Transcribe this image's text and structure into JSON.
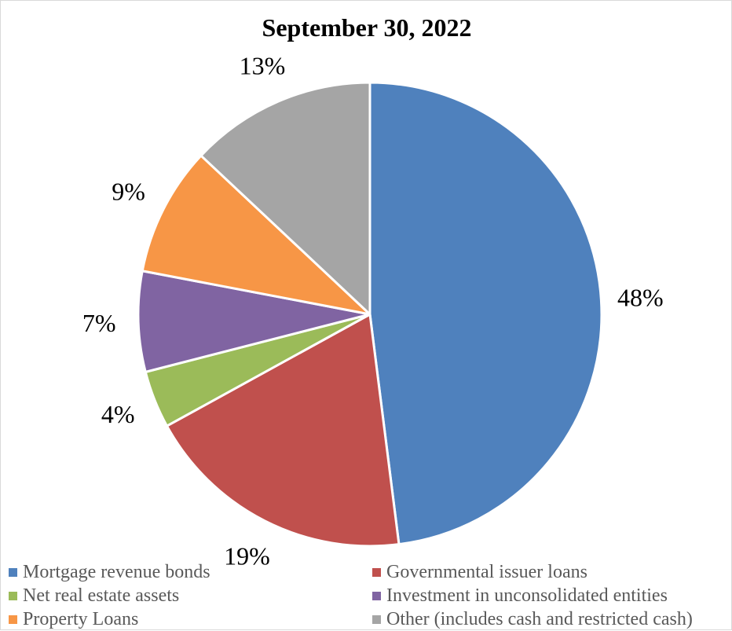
{
  "chart_data": {
    "type": "pie",
    "title": "September 30, 2022",
    "categories": [
      "Mortgage revenue bonds",
      "Governmental issuer loans",
      "Net real estate assets",
      "Investment in unconsolidated entities",
      "Property Loans",
      "Other (includes cash and restricted cash)"
    ],
    "values": [
      48,
      19,
      4,
      7,
      9,
      13
    ],
    "labels": [
      "48%",
      "19%",
      "4%",
      "7%",
      "9%",
      "13%"
    ],
    "colors": [
      "#4f81bd",
      "#c0504d",
      "#9bbb59",
      "#8064a2",
      "#f79646",
      "#a5a5a5"
    ],
    "start": "12 o'clock",
    "direction": "clockwise",
    "legend_position": "bottom"
  }
}
